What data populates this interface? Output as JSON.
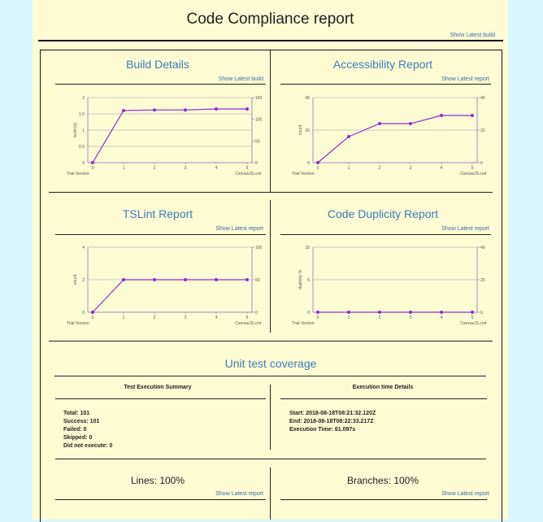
{
  "page": {
    "title": "Code Compliance report",
    "show_latest_build": "Show Latest build"
  },
  "panels": [
    {
      "title": "Build Details",
      "link": "Show Latest build",
      "left_axis": "build (s)",
      "right_axis": "coverage (%)",
      "trial": "Trial Version",
      "credit": "CanvasJS.com"
    },
    {
      "title": "Accessibility Report",
      "link": "Show Latest report",
      "left_axis": "count",
      "right_axis": "coverage (%)",
      "trial": "Trial Version",
      "credit": "CanvasJS.com"
    },
    {
      "title": "TSLint Report",
      "link": "Show Latest report",
      "left_axis": "count",
      "right_axis": "coverage (%)",
      "trial": "Trial Version",
      "credit": "CanvasJS.com"
    },
    {
      "title": "Code Duplicity Report",
      "link": "Show Latest report",
      "left_axis": "duplicity %",
      "right_axis": "coverage (%)",
      "trial": "Trial Version",
      "credit": "CanvasJS.com"
    }
  ],
  "chart_data": [
    {
      "type": "line",
      "title": "Build Details",
      "x": [
        0,
        1,
        2,
        3,
        4,
        5
      ],
      "values": [
        0,
        1.6,
        1.62,
        1.62,
        1.65,
        1.65
      ],
      "ylim": [
        0,
        2
      ],
      "yticks": [
        "0",
        "0.5",
        "1",
        "1.5",
        "2"
      ],
      "y2lim": [
        0,
        150
      ],
      "y2ticks": [
        "0",
        "50",
        "100",
        "150"
      ],
      "xticks": [
        "0",
        "1",
        "2",
        "3",
        "4",
        "5"
      ]
    },
    {
      "type": "line",
      "title": "Accessibility Report",
      "x": [
        0,
        1,
        2,
        3,
        4,
        5
      ],
      "values": [
        0,
        16,
        24,
        24,
        29,
        29
      ],
      "ylim": [
        0,
        40
      ],
      "yticks": [
        "0",
        "20",
        "40"
      ],
      "y2lim": [
        0,
        40
      ],
      "y2ticks": [
        "0",
        "20",
        "40"
      ],
      "xticks": [
        "0",
        "1",
        "2",
        "3",
        "4",
        "5"
      ]
    },
    {
      "type": "line",
      "title": "TSLint Report",
      "x": [
        0,
        1,
        2,
        3,
        4,
        5
      ],
      "values": [
        0,
        2,
        2,
        2,
        2,
        2
      ],
      "ylim": [
        0,
        4
      ],
      "yticks": [
        "0",
        "2",
        "4"
      ],
      "y2lim": [
        0,
        100
      ],
      "y2ticks": [
        "0",
        "50",
        "100"
      ],
      "xticks": [
        "0",
        "1",
        "2",
        "3",
        "4",
        "5"
      ]
    },
    {
      "type": "line",
      "title": "Code Duplicity Report",
      "x": [
        0,
        1,
        2,
        3,
        4,
        5
      ],
      "values": [
        0,
        0,
        0,
        0,
        0,
        0
      ],
      "ylim": [
        0,
        10
      ],
      "yticks": [
        "0",
        "5",
        "10"
      ],
      "y2lim": [
        0,
        40
      ],
      "y2ticks": [
        "0",
        "20",
        "40"
      ],
      "xticks": [
        "0",
        "1",
        "2",
        "3",
        "4",
        "5"
      ]
    }
  ],
  "unit_test": {
    "title": "Unit test coverage",
    "summary_title": "Test Execution Summary",
    "time_title": "Execution time Details",
    "summary_lines": [
      "Total: 101",
      "Success: 101",
      "Failed: 0",
      "Skipped: 0",
      "Did not execute: 0"
    ],
    "time_lines": [
      "Start: 2018-08-18T08:21:32.120Z",
      "End: 2018-08-18T08:22:33.217Z",
      "Execution Time: 61.097s"
    ],
    "lines_label": "Lines: 100%",
    "branches_label": "Branches: 100%",
    "show_latest_report": "Show Latest report"
  },
  "colors": {
    "line": "#8e2fc9",
    "title": "#3f7bb8",
    "axis": "#a888c9",
    "grid": "#bbbbbb"
  }
}
